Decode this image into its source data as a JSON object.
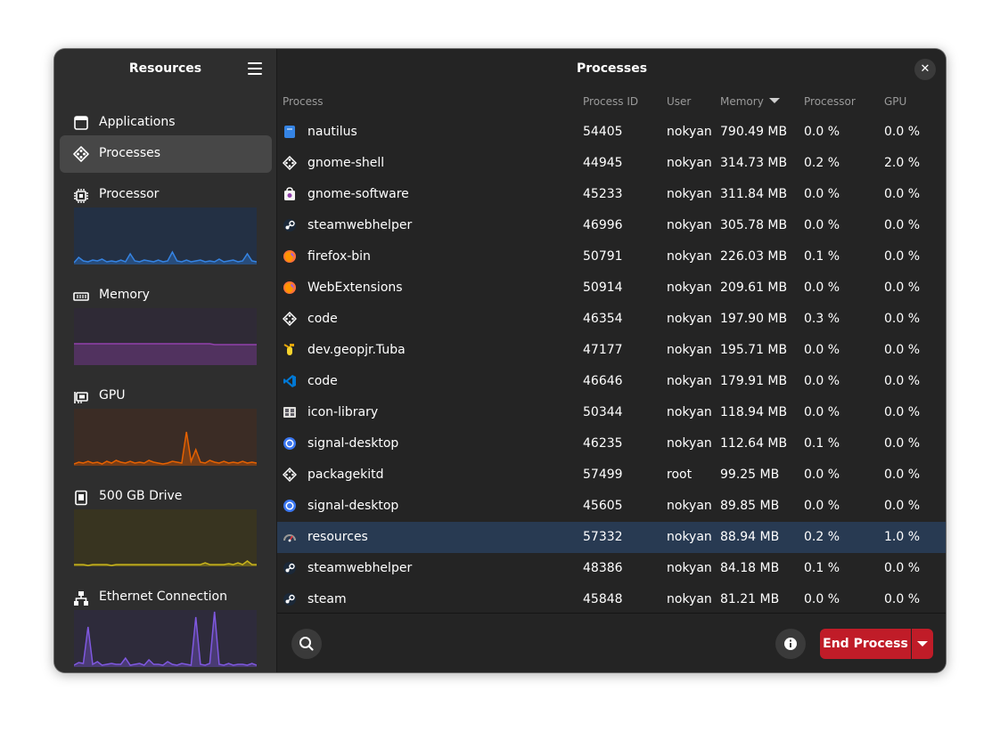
{
  "sidebar": {
    "title": "Resources",
    "nav": [
      {
        "label": "Applications",
        "icon": "applications-icon"
      },
      {
        "label": "Processes",
        "icon": "processes-icon"
      }
    ],
    "resources": [
      {
        "label": "Processor",
        "icon": "cpu-icon",
        "line_color": "#3584e4",
        "fill_color": "#233044",
        "values": [
          2,
          8,
          4,
          3,
          5,
          4,
          6,
          3,
          4,
          3,
          5,
          3,
          12,
          4,
          3,
          5,
          4,
          3,
          5,
          3,
          4,
          14,
          4,
          3,
          5,
          3,
          4,
          5,
          3,
          4,
          3,
          6,
          3,
          4,
          5,
          3,
          4,
          12,
          4,
          3
        ]
      },
      {
        "label": "Memory",
        "icon": "memory-icon",
        "line_color": "#9141ac",
        "fill_color": "#2f2a36",
        "values": [
          24,
          24,
          24,
          24,
          24,
          24,
          24,
          24,
          24,
          24,
          24,
          24,
          24,
          24,
          24,
          24,
          24,
          24,
          24,
          24,
          24,
          24,
          24,
          24,
          24,
          24,
          24,
          24,
          24,
          24,
          23,
          23,
          23,
          23,
          23,
          23,
          23,
          23,
          23,
          23
        ]
      },
      {
        "label": "GPU",
        "icon": "gpu-icon",
        "line_color": "#e66100",
        "fill_color": "#3b2c25",
        "values": [
          2,
          4,
          3,
          5,
          3,
          4,
          2,
          5,
          3,
          6,
          4,
          3,
          5,
          3,
          4,
          3,
          6,
          4,
          3,
          2,
          3,
          5,
          4,
          3,
          38,
          5,
          18,
          4,
          3,
          6,
          4,
          3,
          5,
          3,
          4,
          3,
          5,
          3,
          4,
          3
        ]
      },
      {
        "label": "500 GB Drive",
        "icon": "drive-icon",
        "line_color": "#c8b41c",
        "fill_color": "#383420",
        "values": [
          2,
          2,
          2,
          1,
          2,
          2,
          2,
          2,
          1,
          2,
          2,
          2,
          2,
          2,
          2,
          2,
          2,
          2,
          2,
          2,
          2,
          2,
          2,
          2,
          2,
          2,
          2,
          2,
          4,
          2,
          2,
          2,
          2,
          3,
          2,
          4,
          2,
          6,
          2,
          2
        ]
      },
      {
        "label": "Ethernet Connection",
        "icon": "ethernet-icon",
        "line_color": "#7f58e0",
        "fill_color": "#2e2b3b",
        "values": [
          2,
          5,
          4,
          45,
          3,
          6,
          2,
          3,
          4,
          3,
          3,
          10,
          2,
          3,
          4,
          2,
          8,
          3,
          3,
          2,
          6,
          3,
          2,
          4,
          3,
          2,
          56,
          3,
          2,
          4,
          62,
          3,
          2,
          4,
          2,
          3,
          3,
          2,
          4,
          2
        ]
      }
    ]
  },
  "main": {
    "title": "Processes",
    "columns": {
      "process": "Process",
      "pid": "Process ID",
      "user": "User",
      "memory": "Memory",
      "processor": "Processor",
      "gpu": "GPU"
    },
    "rows": [
      {
        "name": "nautilus",
        "pid": "54405",
        "user": "nokyan",
        "memory": "790.49 MB",
        "cpu": "0.0 %",
        "gpu": "0.0 %",
        "icon": "nautilus"
      },
      {
        "name": "gnome-shell",
        "pid": "44945",
        "user": "nokyan",
        "memory": "314.73 MB",
        "cpu": "0.2 %",
        "gpu": "2.0 %",
        "icon": "generic"
      },
      {
        "name": "gnome-software",
        "pid": "45233",
        "user": "nokyan",
        "memory": "311.84 MB",
        "cpu": "0.0 %",
        "gpu": "0.0 %",
        "icon": "software"
      },
      {
        "name": "steamwebhelper",
        "pid": "46996",
        "user": "nokyan",
        "memory": "305.78 MB",
        "cpu": "0.0 %",
        "gpu": "0.0 %",
        "icon": "steam"
      },
      {
        "name": "firefox-bin",
        "pid": "50791",
        "user": "nokyan",
        "memory": "226.03 MB",
        "cpu": "0.1 %",
        "gpu": "0.0 %",
        "icon": "firefox"
      },
      {
        "name": "WebExtensions",
        "pid": "50914",
        "user": "nokyan",
        "memory": "209.61 MB",
        "cpu": "0.0 %",
        "gpu": "0.0 %",
        "icon": "firefox"
      },
      {
        "name": "code",
        "pid": "46354",
        "user": "nokyan",
        "memory": "197.90 MB",
        "cpu": "0.3 %",
        "gpu": "0.0 %",
        "icon": "generic"
      },
      {
        "name": "dev.geopjr.Tuba",
        "pid": "47177",
        "user": "nokyan",
        "memory": "195.71 MB",
        "cpu": "0.0 %",
        "gpu": "0.0 %",
        "icon": "tuba"
      },
      {
        "name": "code",
        "pid": "46646",
        "user": "nokyan",
        "memory": "179.91 MB",
        "cpu": "0.0 %",
        "gpu": "0.0 %",
        "icon": "vscode"
      },
      {
        "name": "icon-library",
        "pid": "50344",
        "user": "nokyan",
        "memory": "118.94 MB",
        "cpu": "0.0 %",
        "gpu": "0.0 %",
        "icon": "iconlib"
      },
      {
        "name": "signal-desktop",
        "pid": "46235",
        "user": "nokyan",
        "memory": "112.64 MB",
        "cpu": "0.1 %",
        "gpu": "0.0 %",
        "icon": "signal"
      },
      {
        "name": "packagekitd",
        "pid": "57499",
        "user": "root",
        "memory": "99.25 MB",
        "cpu": "0.0 %",
        "gpu": "0.0 %",
        "icon": "generic"
      },
      {
        "name": "signal-desktop",
        "pid": "45605",
        "user": "nokyan",
        "memory": "89.85 MB",
        "cpu": "0.0 %",
        "gpu": "0.0 %",
        "icon": "signal"
      },
      {
        "name": "resources",
        "pid": "57332",
        "user": "nokyan",
        "memory": "88.94 MB",
        "cpu": "0.2 %",
        "gpu": "1.0 %",
        "icon": "resources",
        "selected": true
      },
      {
        "name": "steamwebhelper",
        "pid": "48386",
        "user": "nokyan",
        "memory": "84.18 MB",
        "cpu": "0.1 %",
        "gpu": "0.0 %",
        "icon": "steam"
      },
      {
        "name": "steam",
        "pid": "45848",
        "user": "nokyan",
        "memory": "81.21 MB",
        "cpu": "0.0 %",
        "gpu": "0.0 %",
        "icon": "steam"
      }
    ]
  },
  "bottom": {
    "end_label": "End Process"
  },
  "colors": {
    "accent": "#c01c28",
    "selected_row": "#283a52"
  }
}
